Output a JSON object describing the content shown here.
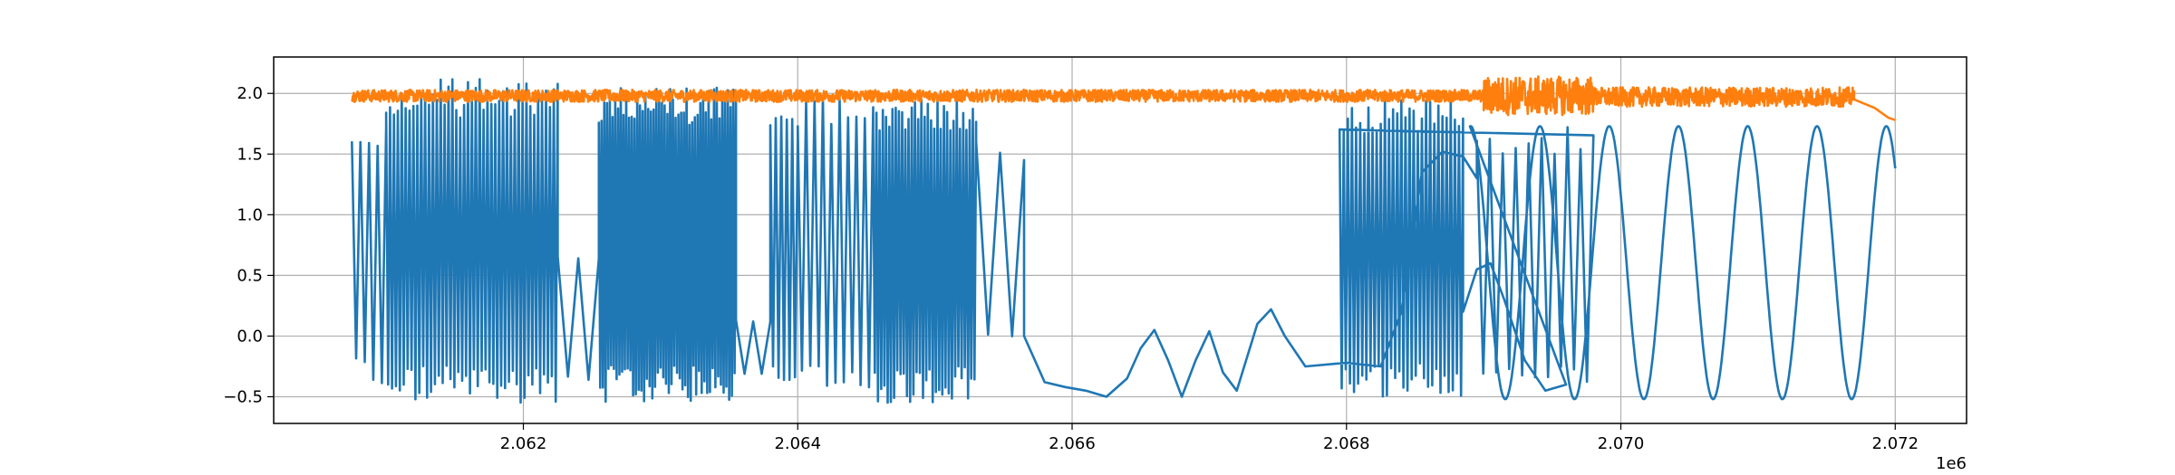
{
  "chart_data": {
    "type": "line",
    "title": "",
    "xlabel": "",
    "ylabel": "",
    "x_offset_label": "1e6",
    "xlim": [
      2.06018,
      2.07252
    ],
    "ylim": [
      -0.72,
      2.3
    ],
    "x_ticks": [
      {
        "value": 2.062,
        "label": "2.062"
      },
      {
        "value": 2.064,
        "label": "2.064"
      },
      {
        "value": 2.066,
        "label": "2.066"
      },
      {
        "value": 2.068,
        "label": "2.068"
      },
      {
        "value": 2.07,
        "label": "2.070"
      },
      {
        "value": 2.072,
        "label": "2.072"
      }
    ],
    "y_ticks": [
      {
        "value": -0.5,
        "label": "−0.5"
      },
      {
        "value": 0.0,
        "label": "0.0"
      },
      {
        "value": 0.5,
        "label": "0.5"
      },
      {
        "value": 1.0,
        "label": "1.0"
      },
      {
        "value": 1.5,
        "label": "1.5"
      },
      {
        "value": 2.0,
        "label": "2.0"
      }
    ],
    "grid": true,
    "legend": "none",
    "series": [
      {
        "color": "#1f77b4",
        "segments": [
          {
            "kind": "osc",
            "x0": 2.06075,
            "x1": 2.061,
            "ymin": -0.45,
            "ymax": 1.78,
            "cycles": 4
          },
          {
            "kind": "osc",
            "x0": 2.061,
            "x1": 2.06225,
            "ymin": -0.55,
            "ymax": 2.12,
            "cycles": 44
          },
          {
            "kind": "osc",
            "x0": 2.06225,
            "x1": 2.06255,
            "ymin": -0.42,
            "ymax": 0.72,
            "cycles": 2
          },
          {
            "kind": "osc",
            "x0": 2.06255,
            "x1": 2.06355,
            "ymin": -0.55,
            "ymax": 2.05,
            "cycles": 50
          },
          {
            "kind": "osc",
            "x0": 2.06355,
            "x1": 2.0638,
            "ymin": -0.35,
            "ymax": 0.15,
            "cycles": 2
          },
          {
            "kind": "osc",
            "x0": 2.0638,
            "x1": 2.064,
            "ymin": -0.5,
            "ymax": 1.9,
            "cycles": 5
          },
          {
            "kind": "osc",
            "x0": 2.064,
            "x1": 2.06455,
            "ymin": -0.5,
            "ymax": 2.02,
            "cycles": 9
          },
          {
            "kind": "osc",
            "x0": 2.06455,
            "x1": 2.0653,
            "ymin": -0.55,
            "ymax": 1.98,
            "cycles": 32
          },
          {
            "kind": "osc",
            "x0": 2.0653,
            "x1": 2.06565,
            "ymin": -0.2,
            "ymax": 1.65,
            "cycles": 2
          },
          {
            "kind": "pts",
            "pts": [
              [
                2.06565,
                0.0
              ],
              [
                2.0658,
                -0.38
              ],
              [
                2.06595,
                -0.42
              ],
              [
                2.0661,
                -0.45
              ],
              [
                2.06625,
                -0.5
              ],
              [
                2.0664,
                -0.35
              ],
              [
                2.0665,
                -0.1
              ],
              [
                2.0666,
                0.05
              ],
              [
                2.0667,
                -0.2
              ],
              [
                2.0668,
                -0.5
              ],
              [
                2.0669,
                -0.2
              ],
              [
                2.067,
                0.04
              ],
              [
                2.0671,
                -0.3
              ],
              [
                2.0672,
                -0.45
              ],
              [
                2.06735,
                0.1
              ],
              [
                2.06745,
                0.22
              ],
              [
                2.06755,
                0.0
              ],
              [
                2.0677,
                -0.25
              ],
              [
                2.068,
                -0.22
              ],
              [
                2.06825,
                -0.25
              ],
              [
                2.0684,
                0.2
              ],
              [
                2.06855,
                1.35
              ],
              [
                2.0687,
                1.52
              ],
              [
                2.06885,
                1.48
              ],
              [
                2.06895,
                1.3
              ]
            ]
          },
          {
            "kind": "osc",
            "x0": 2.06895,
            "x1": 2.0698,
            "ymin": -0.48,
            "ymax": 1.75,
            "cycles": 9
          },
          {
            "kind": "osc",
            "x0": 2.0698,
            "x1": 2.06885,
            "ymin": 0,
            "ymax": 0,
            "cycles": 0
          },
          {
            "kind": "osc",
            "x0": 2.06795,
            "x1": 2.06885,
            "ymin": -0.5,
            "ymax": 1.95,
            "cycles": 30
          },
          {
            "kind": "pts",
            "pts": [
              [
                2.06885,
                0.2
              ],
              [
                2.06895,
                0.55
              ],
              [
                2.06905,
                0.6
              ],
              [
                2.06915,
                0.3
              ],
              [
                2.0693,
                -0.2
              ],
              [
                2.06945,
                -0.45
              ],
              [
                2.0696,
                -0.4
              ]
            ]
          },
          {
            "kind": "sine",
            "x0": 2.0689,
            "x1": 2.072,
            "ymin": -0.52,
            "ymax": 1.73,
            "period": 0.000505,
            "phase_x": 2.06941
          }
        ]
      },
      {
        "color": "#ff7f0e",
        "segments": [
          {
            "kind": "noise",
            "x0": 2.06075,
            "x1": 2.069,
            "center": 1.98,
            "amp": 0.05
          },
          {
            "kind": "noise",
            "x0": 2.069,
            "x1": 2.0698,
            "center": 1.98,
            "amp": 0.16
          },
          {
            "kind": "noise",
            "x0": 2.0698,
            "x1": 2.0717,
            "center": 1.97,
            "amp": 0.08
          },
          {
            "kind": "pts",
            "pts": [
              [
                2.0717,
                1.95
              ],
              [
                2.07185,
                1.88
              ],
              [
                2.07195,
                1.8
              ],
              [
                2.072,
                1.78
              ]
            ]
          }
        ]
      }
    ]
  }
}
